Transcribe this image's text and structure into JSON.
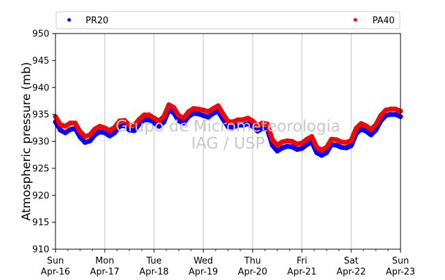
{
  "chart_data": {
    "type": "scatter",
    "ylabel": "Atmospheric pressure (mb)",
    "ylim": [
      910,
      950
    ],
    "yticks": [
      910,
      915,
      920,
      925,
      930,
      935,
      940,
      945,
      950
    ],
    "xlim": [
      0,
      7
    ],
    "x_unit": "days since Sun Apr-16 00:00",
    "xticks": [
      {
        "day": "Sun",
        "date": "Apr-16"
      },
      {
        "day": "Mon",
        "date": "Apr-17"
      },
      {
        "day": "Tue",
        "date": "Apr-18"
      },
      {
        "day": "Wed",
        "date": "Apr-19"
      },
      {
        "day": "Thu",
        "date": "Apr-20"
      },
      {
        "day": "Fri",
        "date": "Apr-21"
      },
      {
        "day": "Sat",
        "date": "Apr-22"
      },
      {
        "day": "Sun",
        "date": "Apr-23"
      }
    ],
    "grid": "vertical",
    "legend_placement": "top",
    "series": [
      {
        "name": "PR20",
        "color": "#0000ff",
        "x": [
          0.0,
          0.1,
          0.2,
          0.3,
          0.4,
          0.5,
          0.6,
          0.7,
          0.8,
          0.9,
          1.0,
          1.1,
          1.2,
          1.3,
          1.4,
          1.5,
          1.6,
          1.7,
          1.8,
          1.9,
          2.0,
          2.1,
          2.2,
          2.3,
          2.4,
          2.5,
          2.6,
          2.7,
          2.8,
          2.9,
          3.0,
          3.1,
          3.2,
          3.3,
          3.4,
          3.5,
          3.6,
          3.7,
          3.8,
          3.9,
          4.0,
          4.1,
          4.2,
          4.3,
          4.4,
          4.5,
          4.6,
          4.7,
          4.8,
          4.9,
          5.0,
          5.1,
          5.2,
          5.3,
          5.4,
          5.5,
          5.6,
          5.7,
          5.8,
          5.9,
          6.0,
          6.1,
          6.2,
          6.3,
          6.4,
          6.5,
          6.6,
          6.7,
          6.8,
          6.9,
          7.0
        ],
        "y": [
          933.6,
          932.1,
          931.6,
          932.2,
          932.4,
          930.8,
          929.8,
          930.1,
          931.2,
          931.8,
          931.6,
          931.0,
          931.6,
          932.8,
          933.0,
          932.1,
          932.0,
          933.2,
          934.0,
          934.0,
          933.4,
          932.8,
          933.6,
          935.8,
          935.3,
          933.8,
          933.4,
          934.6,
          935.2,
          935.1,
          934.8,
          934.5,
          935.2,
          935.6,
          934.1,
          932.7,
          932.6,
          933.0,
          933.0,
          933.3,
          932.8,
          931.9,
          932.4,
          932.2,
          929.3,
          928.2,
          928.8,
          929.1,
          929.0,
          928.5,
          928.7,
          929.4,
          929.9,
          927.9,
          927.4,
          927.9,
          929.4,
          929.3,
          928.9,
          928.8,
          929.2,
          931.4,
          932.3,
          931.9,
          931.2,
          932.1,
          933.8,
          934.8,
          935.0,
          935.0,
          934.6
        ]
      },
      {
        "name": "PA40",
        "color": "#ff0000",
        "x": [
          0.0,
          0.1,
          0.2,
          0.3,
          0.4,
          0.5,
          0.6,
          0.7,
          0.8,
          0.9,
          1.0,
          1.1,
          1.2,
          1.3,
          1.4,
          1.5,
          1.6,
          1.7,
          1.8,
          1.9,
          2.0,
          2.1,
          2.2,
          2.3,
          2.4,
          2.5,
          2.6,
          2.7,
          2.8,
          2.9,
          3.0,
          3.1,
          3.2,
          3.3,
          3.4,
          3.5,
          3.6,
          3.7,
          3.8,
          3.9,
          4.0,
          4.1,
          4.2,
          4.3,
          4.4,
          4.5,
          4.6,
          4.7,
          4.8,
          4.9,
          5.0,
          5.1,
          5.2,
          5.3,
          5.4,
          5.5,
          5.6,
          5.7,
          5.8,
          5.9,
          6.0,
          6.1,
          6.2,
          6.3,
          6.4,
          6.5,
          6.6,
          6.7,
          6.8,
          6.9,
          7.0
        ],
        "y": [
          934.6,
          933.1,
          932.8,
          933.4,
          933.4,
          931.8,
          930.9,
          931.2,
          932.3,
          932.8,
          932.5,
          932.0,
          932.6,
          933.8,
          933.9,
          933.0,
          933.0,
          934.1,
          934.9,
          934.9,
          934.3,
          933.8,
          934.6,
          936.8,
          936.3,
          934.8,
          934.3,
          935.5,
          936.1,
          936.0,
          935.8,
          935.5,
          936.1,
          936.6,
          935.1,
          933.7,
          933.6,
          934.0,
          934.0,
          934.3,
          933.8,
          932.9,
          933.4,
          933.2,
          930.3,
          929.3,
          929.9,
          930.1,
          930.0,
          929.5,
          929.7,
          930.4,
          930.9,
          928.9,
          928.4,
          928.9,
          930.4,
          930.3,
          929.9,
          929.8,
          930.2,
          932.4,
          933.3,
          932.9,
          932.2,
          933.1,
          934.8,
          935.8,
          936.0,
          936.0,
          935.6
        ]
      }
    ],
    "watermark": [
      "Grupo de Micrometeorologia",
      "IAG / USP"
    ]
  }
}
